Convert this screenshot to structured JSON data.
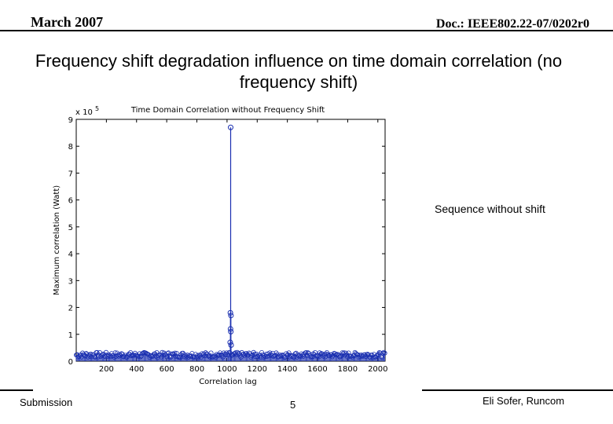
{
  "header": {
    "date": "March 2007",
    "doc": "Doc.: IEEE802.22-07/0202r0"
  },
  "slide_title": "Frequency shift degradation influence on time domain correlation (no frequency shift)",
  "chart_data": {
    "type": "line",
    "title": "Time Domain Correlation without Frequency Shift",
    "xlabel": "Correlation lag",
    "ylabel": "Maximum correlation (Watt)",
    "y_exponent_label": "x 10",
    "y_exponent": "5",
    "xlim": [
      0,
      2048
    ],
    "ylim": [
      0,
      9
    ],
    "x_ticks": [
      "200",
      "400",
      "600",
      "800",
      "1000",
      "1200",
      "1400",
      "1600",
      "1800",
      "2000"
    ],
    "y_ticks": [
      "0",
      "1",
      "2",
      "3",
      "4",
      "5",
      "6",
      "7",
      "8",
      "9"
    ],
    "marker": "circle",
    "color": "#1a2fb0",
    "noise_floor": 0.3,
    "peak": {
      "x": 1024,
      "y": 8.7
    },
    "near_peak_points": [
      {
        "x": 1022,
        "y": 1.8
      },
      {
        "x": 1026,
        "y": 1.7
      },
      {
        "x": 1023,
        "y": 1.2
      },
      {
        "x": 1025,
        "y": 1.1
      },
      {
        "x": 1021,
        "y": 0.7
      },
      {
        "x": 1027,
        "y": 0.6
      }
    ],
    "annotation": "Sequence without shift"
  },
  "footer": {
    "left": "Submission",
    "page": "5",
    "author": "Eli Sofer, Runcom"
  }
}
